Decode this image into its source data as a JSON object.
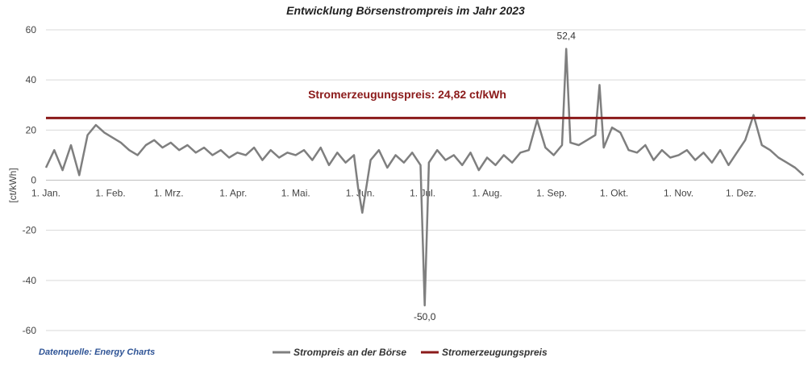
{
  "chart_data": {
    "type": "line",
    "title": "Entwicklung Börsenstrompreis im Jahr 2023",
    "ylabel": "[ct/kWh]",
    "xlabel": "",
    "ylim": [
      -60,
      60
    ],
    "yticks": [
      60,
      40,
      20,
      0,
      -20,
      -40,
      -60
    ],
    "xlim": [
      0,
      365
    ],
    "xticks": [
      {
        "label": "1. Jan.",
        "day": 0
      },
      {
        "label": "1. Feb.",
        "day": 31
      },
      {
        "label": "1. Mrz.",
        "day": 59
      },
      {
        "label": "1. Apr.",
        "day": 90
      },
      {
        "label": "1. Mai.",
        "day": 120
      },
      {
        "label": "1. Jun.",
        "day": 151
      },
      {
        "label": "1. Jul.",
        "day": 181
      },
      {
        "label": "1. Aug.",
        "day": 212
      },
      {
        "label": "1. Sep.",
        "day": 243
      },
      {
        "label": "1. Okt.",
        "day": 273
      },
      {
        "label": "1. Nov.",
        "day": 304
      },
      {
        "label": "1. Dez.",
        "day": 334
      }
    ],
    "grid": true,
    "legend_position": "bottom",
    "series": [
      {
        "name": "Strompreis an der Börse",
        "color": "#7f7f7f",
        "x": [
          0,
          4,
          8,
          12,
          16,
          20,
          24,
          28,
          32,
          36,
          40,
          44,
          48,
          52,
          56,
          60,
          64,
          68,
          72,
          76,
          80,
          84,
          88,
          92,
          96,
          100,
          104,
          108,
          112,
          116,
          120,
          124,
          128,
          132,
          136,
          140,
          144,
          148,
          150,
          152,
          156,
          160,
          164,
          168,
          172,
          176,
          180,
          182,
          184,
          188,
          192,
          196,
          200,
          204,
          208,
          212,
          216,
          220,
          224,
          228,
          232,
          236,
          240,
          244,
          248,
          250,
          252,
          256,
          260,
          264,
          266,
          268,
          272,
          276,
          280,
          284,
          288,
          292,
          296,
          300,
          304,
          308,
          312,
          316,
          320,
          324,
          328,
          332,
          336,
          340,
          344,
          348,
          352,
          356,
          360,
          364
        ],
        "y": [
          5,
          12,
          4,
          14,
          2,
          18,
          22,
          19,
          17,
          15,
          12,
          10,
          14,
          16,
          13,
          15,
          12,
          14,
          11,
          13,
          10,
          12,
          9,
          11,
          10,
          13,
          8,
          12,
          9,
          11,
          10,
          12,
          8,
          13,
          6,
          11,
          7,
          10,
          -3,
          -13,
          8,
          12,
          5,
          10,
          7,
          11,
          6,
          -50,
          7,
          12,
          8,
          10,
          6,
          11,
          4,
          9,
          6,
          10,
          7,
          11,
          12,
          24,
          13,
          10,
          14,
          52.4,
          15,
          14,
          16,
          18,
          38,
          13,
          21,
          19,
          12,
          11,
          14,
          8,
          12,
          9,
          10,
          12,
          8,
          11,
          7,
          12,
          6,
          11,
          16,
          26,
          14,
          12,
          9,
          7,
          5,
          2
        ]
      },
      {
        "name": "Stromerzeugungspreis",
        "color": "#8b1a1a",
        "x": [
          0,
          365
        ],
        "y": [
          24.82,
          24.82
        ]
      }
    ],
    "annotations": [
      {
        "text": "52,4",
        "x": 250,
        "y": 52.4
      },
      {
        "text": "-50,0",
        "x": 182,
        "y": -50
      }
    ],
    "reference_label": "Stromerzeugungspreis: 24,82 ct/kWh",
    "source": "Datenquelle: Energy Charts"
  }
}
